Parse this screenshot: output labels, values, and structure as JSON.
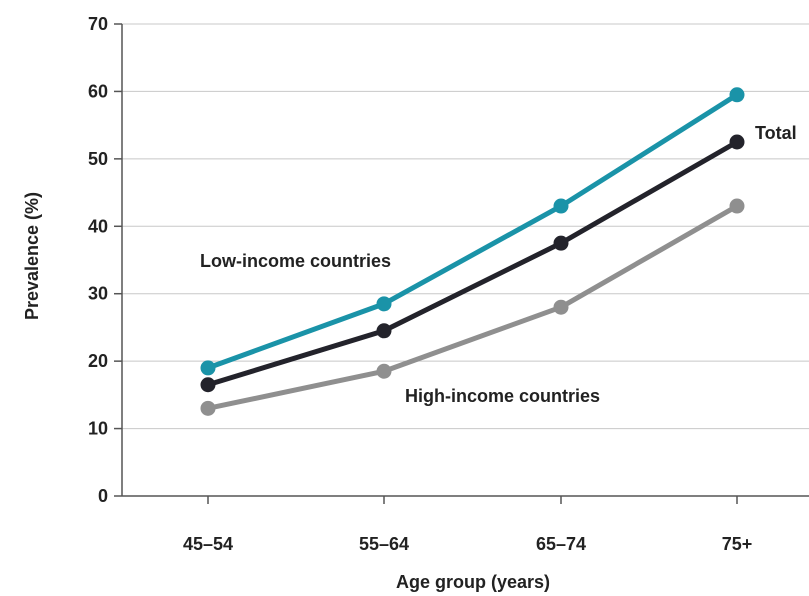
{
  "chart_data": {
    "type": "line",
    "categories": [
      "45–54",
      "55–64",
      "65–74",
      "75+"
    ],
    "series": [
      {
        "name": "Low-income countries",
        "values": [
          19,
          28.5,
          43,
          59.5
        ],
        "color": "#1a93a8"
      },
      {
        "name": "Total",
        "values": [
          16.5,
          24.5,
          37.5,
          52.5
        ],
        "color": "#23232b"
      },
      {
        "name": "High-income countries",
        "values": [
          13,
          18.5,
          28,
          43
        ],
        "color": "#8f8f8f"
      }
    ],
    "title": "",
    "xlabel": "Age group (years)",
    "ylabel": "Prevalence (%)",
    "ylim": [
      0,
      70
    ],
    "yticks": [
      "0",
      "10",
      "20",
      "30",
      "40",
      "50",
      "60",
      "70"
    ],
    "grid": true
  }
}
